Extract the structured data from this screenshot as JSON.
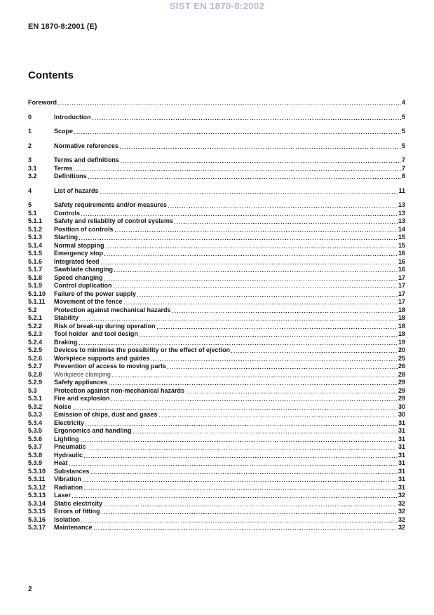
{
  "watermark": "SIST EN 1870-8:2002",
  "doc_ref": "EN 1870-8:2001 (E)",
  "contents_title": "Contents",
  "page_number": "2",
  "colors": {
    "watermark": "#b2b5e6",
    "text": "#1a1a1a",
    "background": "#ffffff"
  },
  "toc": {
    "entries": [
      {
        "num": "",
        "title": "Foreword",
        "page": "4"
      },
      {
        "num": "0",
        "title": "Introduction",
        "page": "5"
      },
      {
        "num": "1",
        "title": "Scope",
        "page": "5"
      },
      {
        "num": "2",
        "title": "Normative references",
        "page": "5"
      },
      {
        "num": "3",
        "title": "Terms and definitions",
        "page": "7"
      },
      {
        "num": "3.1",
        "title": "Terms",
        "page": "7"
      },
      {
        "num": "3.2",
        "title": "Definitions",
        "page": "8"
      },
      {
        "num": "4",
        "title": "List of hazards",
        "page": "11"
      },
      {
        "num": "5",
        "title": "Safety requirements and/or measures",
        "page": "13"
      },
      {
        "num": "5.1",
        "title": "Controls",
        "page": "13"
      },
      {
        "num": "5.1.1",
        "title": "Safety and reliability of control systems",
        "page": "13"
      },
      {
        "num": "5.1.2",
        "title": "Position of controls",
        "page": "14"
      },
      {
        "num": "5.1.3",
        "title": "Starting",
        "page": "15"
      },
      {
        "num": "5.1.4",
        "title": "Normal stopping",
        "page": "15"
      },
      {
        "num": "5.1.5",
        "title": "Emergency stop",
        "page": "16"
      },
      {
        "num": "5.1.6",
        "title": "Integrated feed",
        "page": "16"
      },
      {
        "num": "5.1.7",
        "title": "Sawblade changing",
        "page": "16"
      },
      {
        "num": "5.1.8",
        "title": "Speed changing",
        "page": "17"
      },
      {
        "num": "5.1.9",
        "title": "Control duplication",
        "page": "17"
      },
      {
        "num": "5.1.10",
        "title": "Failure of the power supply",
        "page": "17"
      },
      {
        "num": "5.1.11",
        "title": "Movement of the fence",
        "page": "17"
      },
      {
        "num": "5.2",
        "title": "Protection against mechanical hazards",
        "page": "18"
      },
      {
        "num": "5.2.1",
        "title": "Stability",
        "page": "18"
      },
      {
        "num": "5.2.2",
        "title": "Risk of break-up during operation",
        "page": "18"
      },
      {
        "num": "5.2.3",
        "title": "Tool holder  and tool design",
        "page": "18"
      },
      {
        "num": "5.2.4",
        "title": "Braking",
        "page": "19"
      },
      {
        "num": "5.2.5",
        "title": "Devices to minimise the possibility or the effect of ejection",
        "page": "20"
      },
      {
        "num": "5.2.6",
        "title": "Workpiece supports and guides",
        "page": "25"
      },
      {
        "num": "5.2.7",
        "title": "Prevention of access to moving parts",
        "page": "26"
      },
      {
        "num": "5.2.8",
        "title": "Workpiece clamping",
        "page": "28",
        "bold": false
      },
      {
        "num": "5.2.9",
        "title": "Safety appliances",
        "page": "29"
      },
      {
        "num": "5.3",
        "title": "Protection against non-mechanical hazards",
        "page": "29"
      },
      {
        "num": "5.3.1",
        "title": "Fire and explosion",
        "page": "29"
      },
      {
        "num": "5.3.2",
        "title": "Noise",
        "page": "30"
      },
      {
        "num": "5.3.3",
        "title": "Emission of chips, dust and gases",
        "page": "30"
      },
      {
        "num": "5.3.4",
        "title": "Electricity",
        "page": "31"
      },
      {
        "num": "5.3.5",
        "title": "Ergonomics and handling",
        "page": "31"
      },
      {
        "num": "5.3.6",
        "title": "Lighting",
        "page": "31"
      },
      {
        "num": "5.3.7",
        "title": "Pneumatic",
        "page": "31"
      },
      {
        "num": "5.3.8",
        "title": "Hydraulic",
        "page": "31"
      },
      {
        "num": "5.3.9",
        "title": "Heat",
        "page": "31"
      },
      {
        "num": "5.3.10",
        "title": "Substances",
        "page": "31"
      },
      {
        "num": "5.3.11",
        "title": "Vibration",
        "page": "31"
      },
      {
        "num": "5.3.12",
        "title": "Radiation",
        "page": "31"
      },
      {
        "num": "5.3.13",
        "title": "Laser",
        "page": "32"
      },
      {
        "num": "5.3.14",
        "title": "Static electricity",
        "page": "32"
      },
      {
        "num": "5.3.15",
        "title": "Errors of fitting",
        "page": "32"
      },
      {
        "num": "5.3.16",
        "title": "Isolation",
        "page": "32"
      },
      {
        "num": "5.3.17",
        "title": "Maintenance",
        "page": "32"
      }
    ]
  }
}
